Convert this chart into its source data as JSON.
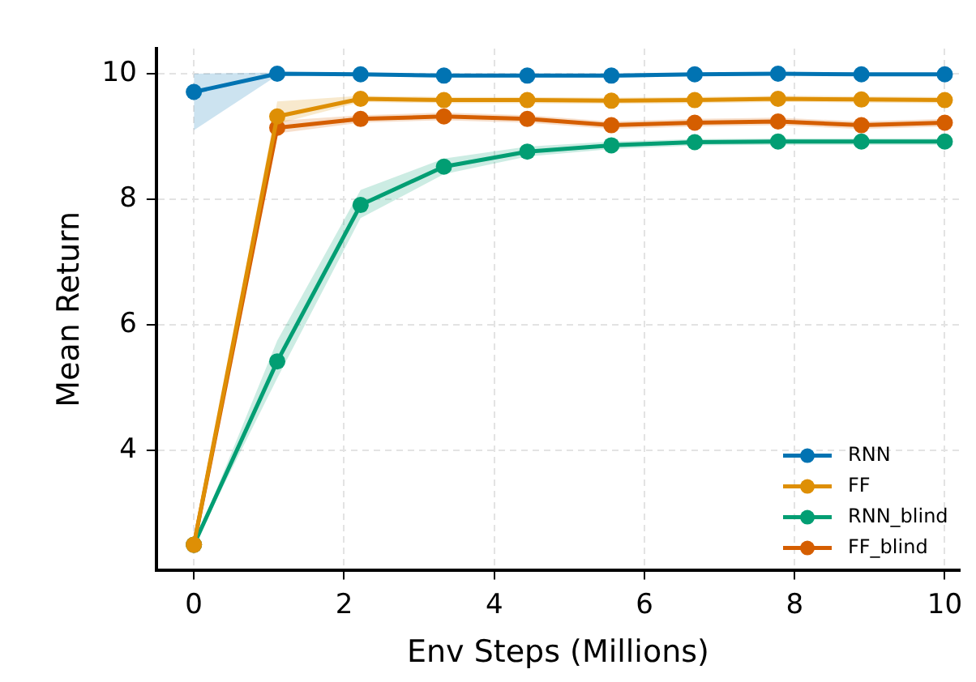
{
  "chart_data": {
    "type": "line",
    "xlabel": "Env Steps (Millions)",
    "ylabel": "Mean Return",
    "x": [
      0,
      1.11,
      2.22,
      3.33,
      4.44,
      5.56,
      6.67,
      7.78,
      8.89,
      10
    ],
    "xlim": [
      -0.5,
      10.2
    ],
    "xticks": [
      0,
      2,
      4,
      6,
      8,
      10
    ],
    "ylim": [
      2.1,
      10.4
    ],
    "yticks": [
      4,
      6,
      8,
      10
    ],
    "grid": true,
    "legend": "bottom right",
    "marker": "circle",
    "line_style": "solid",
    "series": [
      {
        "name": "RNN",
        "color": "#0173b2",
        "values": [
          9.71,
          10.0,
          9.99,
          9.97,
          9.97,
          9.97,
          9.99,
          10.0,
          9.99,
          9.99
        ],
        "lower": [
          9.1,
          9.97,
          9.96,
          9.94,
          9.94,
          9.93,
          9.96,
          9.97,
          9.96,
          9.96
        ],
        "upper": [
          10.0,
          10.02,
          10.01,
          10.0,
          10.0,
          10.0,
          10.01,
          10.02,
          10.01,
          10.01
        ]
      },
      {
        "name": "FF",
        "color": "#de8f05",
        "values": [
          2.5,
          9.32,
          9.6,
          9.58,
          9.58,
          9.57,
          9.58,
          9.6,
          9.59,
          9.58
        ],
        "lower": [
          2.5,
          9.2,
          9.55,
          9.53,
          9.53,
          9.52,
          9.53,
          9.55,
          9.54,
          9.53
        ],
        "upper": [
          2.5,
          9.56,
          9.65,
          9.63,
          9.63,
          9.62,
          9.63,
          9.65,
          9.64,
          9.63
        ]
      },
      {
        "name": "RNN_blind",
        "color": "#029e73",
        "values": [
          2.5,
          5.42,
          7.91,
          8.52,
          8.76,
          8.86,
          8.91,
          8.92,
          8.92,
          8.92
        ],
        "lower": [
          2.5,
          5.15,
          7.7,
          8.4,
          8.68,
          8.8,
          8.86,
          8.87,
          8.87,
          8.87
        ],
        "upper": [
          2.5,
          5.75,
          8.15,
          8.65,
          8.84,
          8.92,
          8.96,
          8.97,
          8.97,
          8.97
        ]
      },
      {
        "name": "FF_blind",
        "color": "#d55e00",
        "values": [
          2.5,
          9.14,
          9.28,
          9.32,
          9.28,
          9.18,
          9.22,
          9.24,
          9.18,
          9.22
        ],
        "lower": [
          2.5,
          9.05,
          9.22,
          9.26,
          9.22,
          9.12,
          9.16,
          9.18,
          9.12,
          9.16
        ],
        "upper": [
          2.5,
          9.25,
          9.34,
          9.38,
          9.34,
          9.24,
          9.28,
          9.3,
          9.24,
          9.28
        ]
      }
    ]
  }
}
